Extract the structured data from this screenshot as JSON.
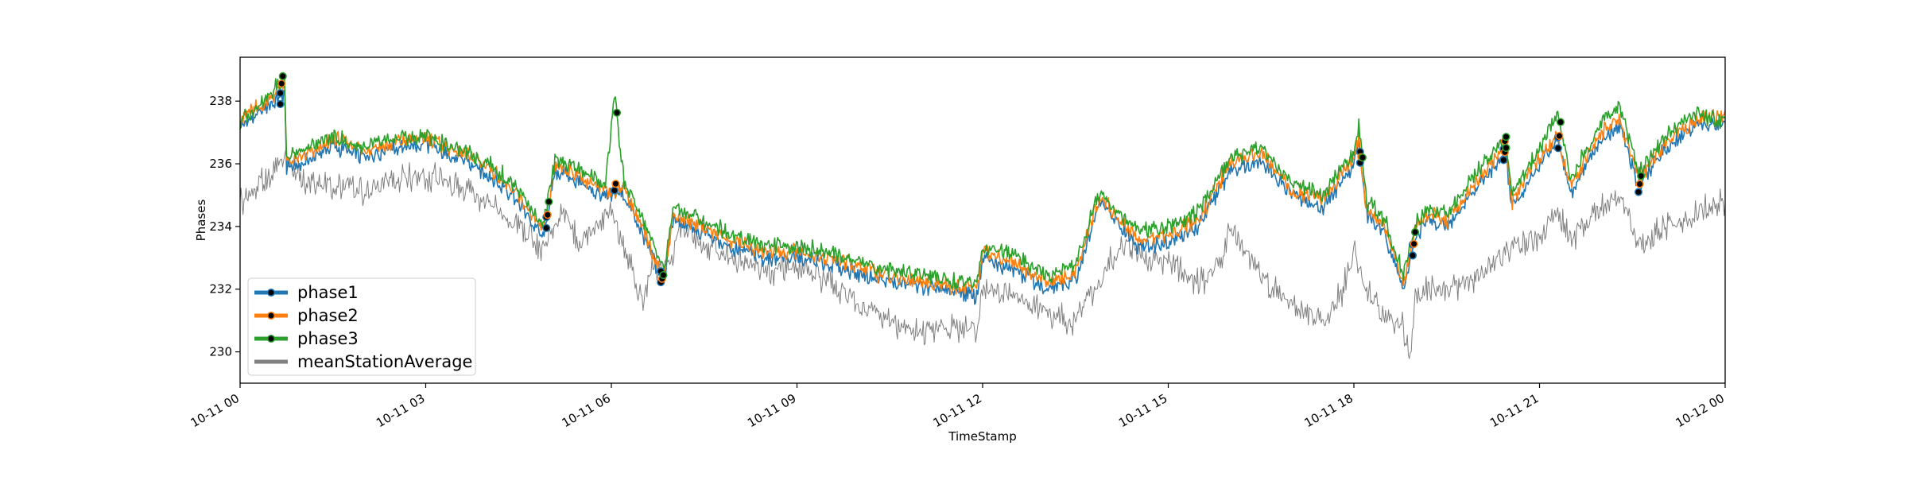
{
  "chart_data": {
    "type": "line",
    "xlabel": "TimeStamp",
    "ylabel": "Phases",
    "x_range": [
      "10-11 00:00",
      "10-12 00:00"
    ],
    "ylim": [
      229,
      239.4
    ],
    "x_ticks": [
      {
        "hour": 0,
        "label": "10-11 00"
      },
      {
        "hour": 3,
        "label": "10-11 03"
      },
      {
        "hour": 6,
        "label": "10-11 06"
      },
      {
        "hour": 9,
        "label": "10-11 09"
      },
      {
        "hour": 12,
        "label": "10-11 12"
      },
      {
        "hour": 15,
        "label": "10-11 15"
      },
      {
        "hour": 18,
        "label": "10-11 18"
      },
      {
        "hour": 21,
        "label": "10-11 21"
      },
      {
        "hour": 24,
        "label": "10-12 00"
      }
    ],
    "y_ticks": [
      230,
      232,
      234,
      236,
      238
    ],
    "grid": false,
    "legend_position": "lower-left",
    "series": [
      {
        "name": "phase1",
        "color": "#1f77b4",
        "x_hours": [
          0,
          0.5,
          0.72,
          0.75,
          1,
          1.5,
          2,
          2.5,
          3,
          3.5,
          4,
          4.5,
          4.9,
          5.1,
          5.5,
          5.9,
          6.05,
          6.2,
          6.6,
          6.85,
          7,
          7.5,
          8,
          8.5,
          9,
          9.5,
          10,
          10.5,
          11,
          11.5,
          11.9,
          12,
          12.5,
          13,
          13.5,
          13.9,
          14.2,
          14.5,
          15,
          15.5,
          16,
          16.5,
          17,
          17.5,
          18,
          18.08,
          18.2,
          18.5,
          18.8,
          19,
          19.2,
          19.5,
          20,
          20.3,
          20.45,
          20.55,
          21,
          21.3,
          21.5,
          22,
          22.3,
          22.6,
          23,
          23.5,
          24
        ],
        "values": [
          237.2,
          237.9,
          238.2,
          235.9,
          236,
          236.6,
          236.2,
          236.5,
          236.6,
          236.2,
          235.7,
          234.8,
          233.6,
          235.8,
          235.4,
          234.9,
          235,
          235.1,
          233.3,
          232.2,
          234.2,
          233.8,
          233.3,
          233,
          233,
          232.8,
          232.5,
          232.2,
          232.1,
          231.9,
          231.8,
          232.9,
          232.7,
          232,
          232.3,
          234.8,
          234,
          233.4,
          233.5,
          234,
          235.8,
          236.1,
          235,
          234.6,
          236,
          236.6,
          234.4,
          233.8,
          232,
          233.7,
          234.2,
          234,
          235.3,
          236,
          236.4,
          234.6,
          236,
          236.7,
          235.1,
          236.8,
          237.2,
          235.3,
          236.4,
          237.2,
          237.3
        ]
      },
      {
        "name": "phase2",
        "color": "#ff7f0e",
        "x_hours": [
          0,
          0.5,
          0.72,
          0.75,
          1,
          1.5,
          2,
          2.5,
          3,
          3.5,
          4,
          4.5,
          4.9,
          5.1,
          5.5,
          5.9,
          6.05,
          6.2,
          6.6,
          6.85,
          7,
          7.5,
          8,
          8.5,
          9,
          9.5,
          10,
          10.5,
          11,
          11.5,
          11.9,
          12,
          12.5,
          13,
          13.5,
          13.9,
          14.2,
          14.5,
          15,
          15.5,
          16,
          16.5,
          17,
          17.5,
          18,
          18.08,
          18.2,
          18.5,
          18.8,
          19,
          19.2,
          19.5,
          20,
          20.3,
          20.45,
          20.55,
          21,
          21.3,
          21.5,
          22,
          22.3,
          22.6,
          23,
          23.5,
          24
        ],
        "values": [
          237.4,
          238.1,
          238.5,
          236.1,
          236.2,
          236.8,
          236.4,
          236.7,
          236.8,
          236.4,
          235.9,
          235,
          233.8,
          236,
          235.6,
          235.1,
          235.2,
          235.3,
          233.5,
          232.4,
          234.4,
          234,
          233.5,
          233.2,
          233.2,
          233,
          232.7,
          232.4,
          232.3,
          232.1,
          232,
          233.1,
          232.9,
          232.2,
          232.5,
          235,
          234.2,
          233.6,
          233.7,
          234.2,
          236,
          236.3,
          235.2,
          234.8,
          236.2,
          236.8,
          234.6,
          234,
          232.2,
          233.9,
          234.4,
          234.2,
          235.5,
          236.2,
          236.6,
          234.8,
          236.2,
          236.9,
          235.3,
          237,
          237.4,
          235.5,
          236.6,
          237.4,
          237.5
        ]
      },
      {
        "name": "phase3",
        "color": "#2ca02c",
        "x_hours": [
          0,
          0.5,
          0.72,
          0.75,
          1,
          1.5,
          2,
          2.5,
          3,
          3.5,
          4,
          4.5,
          4.9,
          5.1,
          5.5,
          5.9,
          6.05,
          6.2,
          6.6,
          6.85,
          7,
          7.5,
          8,
          8.5,
          9,
          9.5,
          10,
          10.5,
          11,
          11.5,
          11.9,
          12,
          12.5,
          13,
          13.5,
          13.9,
          14.2,
          14.5,
          15,
          15.5,
          16,
          16.5,
          17,
          17.5,
          18,
          18.08,
          18.2,
          18.5,
          18.8,
          19,
          19.2,
          19.5,
          20,
          20.3,
          20.45,
          20.55,
          21,
          21.3,
          21.5,
          22,
          22.3,
          22.6,
          23,
          23.5,
          24
        ],
        "values": [
          237.3,
          238.3,
          238.7,
          236.3,
          236.4,
          236.9,
          236.5,
          236.8,
          236.9,
          236.5,
          236.1,
          235.2,
          234,
          236.2,
          235.8,
          235.3,
          238.2,
          235.5,
          233.8,
          232.6,
          234.6,
          234.2,
          233.7,
          233.4,
          233.4,
          233.2,
          232.9,
          232.6,
          232.5,
          232.3,
          232.2,
          233.3,
          233.1,
          232.4,
          232.8,
          235.2,
          234.4,
          233.9,
          234,
          234.5,
          236.2,
          236.5,
          235.4,
          235,
          236.4,
          237.3,
          234.8,
          234.2,
          232.5,
          234.1,
          234.6,
          234.4,
          235.8,
          236.5,
          236.9,
          235,
          236.5,
          237.6,
          235.5,
          237.3,
          237.9,
          235.7,
          236.8,
          237.6,
          237.4
        ]
      },
      {
        "name": "meanStationAverage",
        "color": "#808080",
        "x_hours": [
          0,
          0.5,
          0.75,
          1,
          1.5,
          2,
          2.5,
          3,
          3.5,
          4,
          4.5,
          4.9,
          5.2,
          5.5,
          6,
          6.3,
          6.5,
          6.7,
          6.9,
          7.1,
          7.5,
          8,
          8.5,
          9,
          9.5,
          10,
          10.5,
          11,
          11.5,
          11.9,
          12,
          12.5,
          13,
          13.5,
          13.9,
          14.3,
          14.7,
          15,
          15.5,
          15.8,
          16,
          16.5,
          17,
          17.5,
          17.8,
          18,
          18.2,
          18.5,
          18.8,
          18.9,
          19,
          19.3,
          19.5,
          20,
          20.3,
          20.5,
          21,
          21.3,
          21.5,
          22,
          22.3,
          22.6,
          23,
          23.5,
          24
        ],
        "values": [
          234.8,
          235.6,
          236.3,
          235.4,
          235.3,
          235.1,
          235.5,
          235.6,
          235.3,
          234.8,
          234,
          233.2,
          234.5,
          233.5,
          234.5,
          232.8,
          231.5,
          232.8,
          232.5,
          234,
          233.4,
          233,
          232.6,
          232.7,
          232.2,
          231.5,
          231,
          230.6,
          230.8,
          230.6,
          232,
          231.8,
          231.2,
          231,
          232.4,
          233.5,
          232.9,
          232.9,
          232.2,
          232.8,
          233.8,
          232.5,
          231.4,
          231,
          231.8,
          233.2,
          232.1,
          231.2,
          230.8,
          229.7,
          231.7,
          232.1,
          231.9,
          232.4,
          233,
          233.2,
          233.6,
          234.6,
          233.6,
          234.6,
          235.1,
          233.4,
          233.9,
          234.4,
          234.8
        ]
      }
    ],
    "markers": [
      {
        "series": "phase1",
        "x_hours": [
          0.65,
          0.65,
          4.95,
          4.95,
          6.05,
          6.8,
          6.8,
          18.1,
          18.1,
          18.95,
          18.95,
          18.95,
          20.42,
          20.42,
          20.42,
          21.3,
          21.3,
          22.6
        ]
      },
      {
        "series": "phase2",
        "x_hours": [
          0.67,
          4.97,
          6.07,
          6.82,
          18.12,
          18.97,
          20.44,
          20.44,
          21.32,
          22.62
        ]
      },
      {
        "series": "phase3",
        "x_hours": [
          0.69,
          4.99,
          6.09,
          6.84,
          18.14,
          18.99,
          20.46,
          20.46,
          21.34,
          22.64
        ]
      }
    ]
  }
}
